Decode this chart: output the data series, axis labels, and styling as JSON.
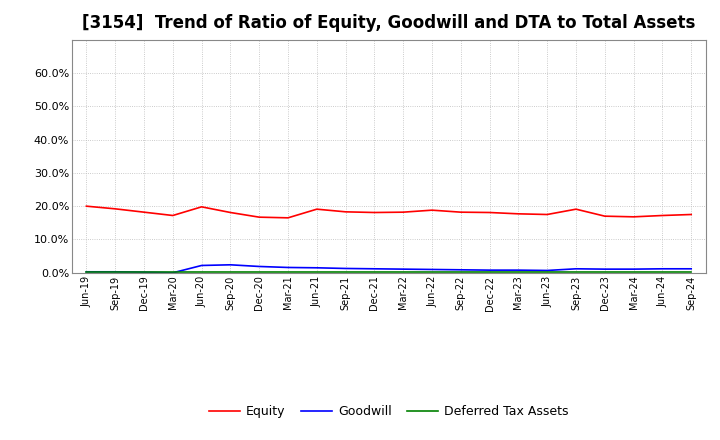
{
  "title": "[3154]  Trend of Ratio of Equity, Goodwill and DTA to Total Assets",
  "x_labels": [
    "Jun-19",
    "Sep-19",
    "Dec-19",
    "Mar-20",
    "Jun-20",
    "Sep-20",
    "Dec-20",
    "Mar-21",
    "Jun-21",
    "Sep-21",
    "Dec-21",
    "Mar-22",
    "Jun-22",
    "Sep-22",
    "Dec-22",
    "Mar-23",
    "Jun-23",
    "Sep-23",
    "Dec-23",
    "Mar-24",
    "Jun-24",
    "Sep-24"
  ],
  "equity": [
    0.2,
    0.192,
    0.182,
    0.172,
    0.198,
    0.181,
    0.167,
    0.165,
    0.191,
    0.183,
    0.181,
    0.182,
    0.188,
    0.182,
    0.181,
    0.177,
    0.175,
    0.191,
    0.17,
    0.168,
    0.172,
    0.175
  ],
  "goodwill": [
    0.003,
    0.003,
    0.002,
    0.0,
    0.022,
    0.024,
    0.019,
    0.016,
    0.015,
    0.013,
    0.012,
    0.011,
    0.01,
    0.009,
    0.008,
    0.008,
    0.007,
    0.012,
    0.011,
    0.011,
    0.012,
    0.012
  ],
  "dta": [
    0.001,
    0.001,
    0.001,
    0.001,
    0.001,
    0.001,
    0.001,
    0.001,
    0.001,
    0.001,
    0.001,
    0.001,
    0.001,
    0.001,
    0.001,
    0.001,
    0.001,
    0.001,
    0.001,
    0.001,
    0.001,
    0.001
  ],
  "equity_color": "#FF0000",
  "goodwill_color": "#0000FF",
  "dta_color": "#008000",
  "ylim": [
    0.0,
    0.7
  ],
  "yticks": [
    0.0,
    0.1,
    0.2,
    0.3,
    0.4,
    0.5,
    0.6
  ],
  "background_color": "#FFFFFF",
  "grid_color": "#AAAAAA",
  "title_fontsize": 12,
  "legend_labels": [
    "Equity",
    "Goodwill",
    "Deferred Tax Assets"
  ]
}
